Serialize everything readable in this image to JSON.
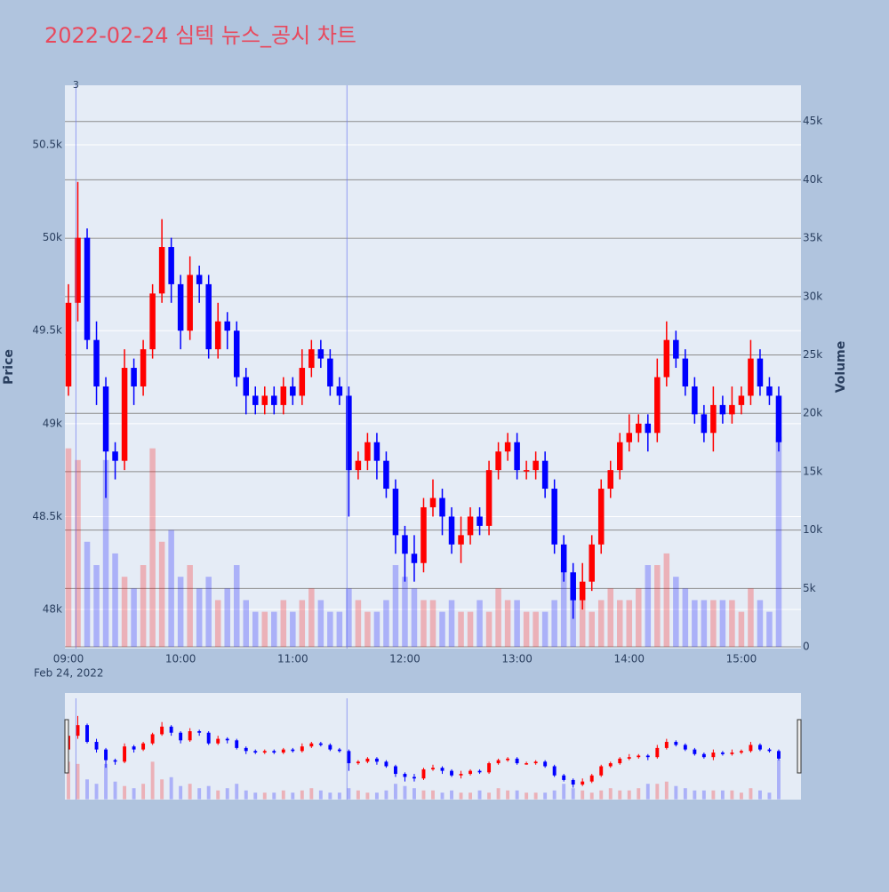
{
  "chart_data": {
    "type": "candlestick",
    "title": "2022-02-24 심텍 뉴스_공시 차트",
    "x": [
      "09:00",
      "09:05",
      "09:10",
      "09:15",
      "09:20",
      "09:25",
      "09:30",
      "09:35",
      "09:40",
      "09:45",
      "09:50",
      "09:55",
      "10:00",
      "10:05",
      "10:10",
      "10:15",
      "10:20",
      "10:25",
      "10:30",
      "10:35",
      "10:40",
      "10:45",
      "10:50",
      "10:55",
      "11:00",
      "11:05",
      "11:10",
      "11:15",
      "11:20",
      "11:25",
      "11:30",
      "11:35",
      "11:40",
      "11:45",
      "11:50",
      "11:55",
      "12:00",
      "12:05",
      "12:10",
      "12:15",
      "12:20",
      "12:25",
      "12:30",
      "12:35",
      "12:40",
      "12:45",
      "12:50",
      "12:55",
      "13:00",
      "13:05",
      "13:10",
      "13:15",
      "13:20",
      "13:25",
      "13:30",
      "13:35",
      "13:40",
      "13:45",
      "13:50",
      "13:55",
      "14:00",
      "14:05",
      "14:10",
      "14:15",
      "14:20",
      "14:25",
      "14:30",
      "14:35",
      "14:40",
      "14:45",
      "14:50",
      "14:55",
      "15:00",
      "15:05",
      "15:10",
      "15:15",
      "15:20"
    ],
    "open": [
      49200,
      49650,
      50000,
      49450,
      49200,
      48850,
      48800,
      49300,
      49200,
      49400,
      49700,
      49950,
      49750,
      49500,
      49800,
      49750,
      49400,
      49550,
      49500,
      49250,
      49150,
      49100,
      49150,
      49100,
      49200,
      49150,
      49300,
      49400,
      49350,
      49200,
      49150,
      48750,
      48800,
      48900,
      48800,
      48650,
      48400,
      48300,
      48250,
      48550,
      48600,
      48500,
      48350,
      48400,
      48500,
      48450,
      48750,
      48850,
      48900,
      48750,
      48750,
      48800,
      48650,
      48350,
      48200,
      48050,
      48150,
      48350,
      48650,
      48750,
      48900,
      48950,
      49000,
      48950,
      49250,
      49450,
      49350,
      49200,
      49050,
      48950,
      49100,
      49050,
      49100,
      49150,
      49350,
      49200,
      49150
    ],
    "high": [
      49750,
      50300,
      50050,
      49550,
      49250,
      48900,
      49400,
      49350,
      49450,
      49750,
      50100,
      50000,
      49800,
      49900,
      49850,
      49800,
      49650,
      49600,
      49550,
      49300,
      49200,
      49200,
      49200,
      49250,
      49250,
      49400,
      49450,
      49450,
      49400,
      49250,
      49200,
      48850,
      48950,
      48950,
      48850,
      48700,
      48450,
      48400,
      48600,
      48700,
      48650,
      48550,
      48500,
      48550,
      48550,
      48800,
      48900,
      48950,
      48950,
      48800,
      48850,
      48850,
      48700,
      48400,
      48250,
      48250,
      48400,
      48700,
      48800,
      48950,
      49050,
      49050,
      49050,
      49350,
      49550,
      49500,
      49400,
      49250,
      49100,
      49200,
      49150,
      49200,
      49200,
      49450,
      49400,
      49250,
      49200
    ],
    "low": [
      49150,
      49550,
      49400,
      49100,
      48600,
      48700,
      48750,
      49100,
      49150,
      49350,
      49650,
      49650,
      49400,
      49450,
      49650,
      49350,
      49350,
      49400,
      49200,
      49050,
      49050,
      49050,
      49050,
      49050,
      49100,
      49100,
      49250,
      49300,
      49150,
      49100,
      48500,
      48700,
      48750,
      48700,
      48600,
      48300,
      48150,
      48150,
      48200,
      48500,
      48400,
      48300,
      48250,
      48350,
      48400,
      48400,
      48700,
      48800,
      48700,
      48700,
      48700,
      48600,
      48300,
      48150,
      47950,
      48000,
      48100,
      48300,
      48600,
      48700,
      48850,
      48900,
      48850,
      48900,
      49200,
      49300,
      49150,
      49000,
      48900,
      48850,
      49000,
      49000,
      49050,
      49100,
      49150,
      49100,
      48850
    ],
    "close": [
      49650,
      50000,
      49450,
      49200,
      48850,
      48800,
      49300,
      49200,
      49400,
      49700,
      49950,
      49750,
      49500,
      49800,
      49750,
      49400,
      49550,
      49500,
      49250,
      49150,
      49100,
      49150,
      49100,
      49200,
      49150,
      49300,
      49400,
      49350,
      49200,
      49150,
      48750,
      48800,
      48900,
      48800,
      48650,
      48400,
      48300,
      48250,
      48550,
      48600,
      48500,
      48350,
      48400,
      48500,
      48450,
      48750,
      48850,
      48900,
      48750,
      48750,
      48800,
      48650,
      48350,
      48200,
      48050,
      48150,
      48350,
      48650,
      48750,
      48900,
      48950,
      49000,
      48950,
      49250,
      49450,
      49350,
      49200,
      49050,
      48950,
      49100,
      49050,
      49100,
      49150,
      49350,
      49200,
      49150,
      48900
    ],
    "volume": [
      17000,
      16000,
      9000,
      7000,
      16000,
      8000,
      6000,
      5000,
      7000,
      17000,
      9000,
      10000,
      6000,
      7000,
      5000,
      6000,
      4000,
      5000,
      7000,
      4000,
      3000,
      3000,
      3000,
      4000,
      3000,
      4000,
      5000,
      4000,
      3000,
      3000,
      5000,
      4000,
      3000,
      3000,
      4000,
      7000,
      6000,
      5000,
      4000,
      4000,
      3000,
      4000,
      3000,
      3000,
      4000,
      3000,
      5000,
      4000,
      4000,
      3000,
      3000,
      3000,
      4000,
      7000,
      5000,
      4000,
      3000,
      4000,
      5000,
      4000,
      4000,
      5000,
      7000,
      7000,
      8000,
      6000,
      5000,
      4000,
      4000,
      4000,
      4000,
      4000,
      3000,
      5000,
      4000,
      3000,
      18000
    ],
    "increasing_color": "#ff0000",
    "decreasing_color": "#0000ff",
    "xlim": [
      "09:00",
      "15:30"
    ],
    "xticks": [
      "09:00",
      "10:00",
      "11:00",
      "12:00",
      "13:00",
      "14:00",
      "15:00"
    ],
    "x_date_label": "Feb 24, 2022",
    "ylabel": "Price",
    "ylim": [
      47790,
      50820
    ],
    "yticks": [
      {
        "value": 48000,
        "label": "48k"
      },
      {
        "value": 48500,
        "label": "48.5k"
      },
      {
        "value": 49000,
        "label": "49k"
      },
      {
        "value": 49500,
        "label": "49.5k"
      },
      {
        "value": 50000,
        "label": "50k"
      },
      {
        "value": 50500,
        "label": "50.5k"
      }
    ],
    "y2label": "Volume",
    "y2lim": [
      -150,
      48100
    ],
    "y2ticks": [
      0,
      {
        "value": 5000,
        "label": "5k"
      },
      {
        "value": 10000,
        "label": "10k"
      },
      {
        "value": 15000,
        "label": "15k"
      },
      {
        "value": 20000,
        "label": "20k"
      },
      {
        "value": 25000,
        "label": "25k"
      },
      {
        "value": 30000,
        "label": "30k"
      },
      {
        "value": 35000,
        "label": "35k"
      },
      {
        "value": 40000,
        "label": "40k"
      },
      {
        "value": 45000,
        "label": "45k"
      }
    ],
    "annotations": [
      {
        "x": "09:04",
        "text": "3"
      },
      {
        "x": "11:29"
      }
    ],
    "rangeslider": true
  }
}
